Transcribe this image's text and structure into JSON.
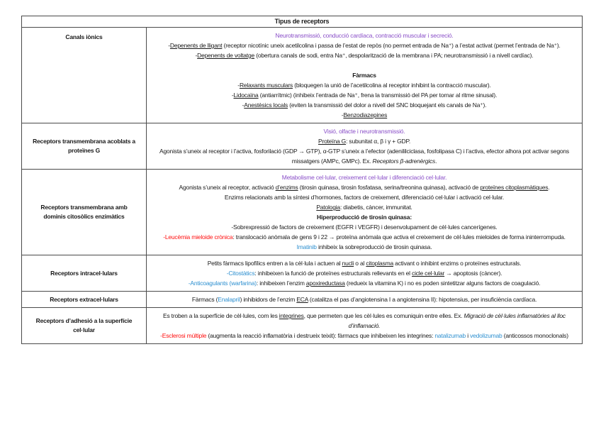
{
  "colors": {
    "purple": "#8A4FC8",
    "red": "#FF1010",
    "blue": "#2E90D0",
    "text": "#1a1a1a",
    "border": "#4a4a4a"
  },
  "table": {
    "title": "Tipus de receptors",
    "rows": [
      {
        "header": "Canals iònics",
        "lines": [
          {
            "segs": [
              {
                "t": "Neurotransmissió, conducció cardíaca, contracció muscular i secreció.",
                "style": "purple"
              }
            ]
          },
          {
            "segs": [
              {
                "t": "-"
              },
              {
                "t": "Depenents de lligant",
                "style": "u"
              },
              {
                "t": " (receptor nicotínic uneix acetilcolina i passa de l’estat de repòs (no permet entrada de Na⁺) a l’estat activat (permet l’entrada de Na⁺)."
              }
            ]
          },
          {
            "segs": [
              {
                "t": "-"
              },
              {
                "t": "Depenents de voltatge",
                "style": "u"
              },
              {
                "t": " (obertura canals de sodi, entra Na⁺, despolarització de la membrana i PA; neurotransmissió i a nivell cardíac)."
              }
            ]
          },
          {
            "segs": []
          },
          {
            "segs": [
              {
                "t": "Fàrmacs",
                "style": "b"
              }
            ]
          },
          {
            "segs": [
              {
                "t": "-"
              },
              {
                "t": "Relaxants musculars",
                "style": "u"
              },
              {
                "t": " (bloquegen la unió de l’acetilcolina al receptor inhibint la contracció muscular)."
              }
            ]
          },
          {
            "segs": [
              {
                "t": "-"
              },
              {
                "t": "Lidocaïna",
                "style": "u"
              },
              {
                "t": " (antiarrítmic) (inhibeix l’entrada de Na⁺, frena la transmissió del PA per tornar al ritme sinusal)."
              }
            ]
          },
          {
            "segs": [
              {
                "t": "-"
              },
              {
                "t": "Anestèsics locals",
                "style": "u"
              },
              {
                "t": " (eviten la transmissió del dolor a nivell del SNC bloquejant els canals de Na⁺)."
              }
            ]
          },
          {
            "segs": [
              {
                "t": "-"
              },
              {
                "t": "Benzodiazepines",
                "style": "u"
              }
            ]
          }
        ]
      },
      {
        "header": "Receptors transmembrana acoblats a proteïnes G",
        "lines": [
          {
            "segs": [
              {
                "t": "Visió, olfacte i neurotransmissió.",
                "style": "purple"
              }
            ]
          },
          {
            "segs": [
              {
                "t": "Proteïna G",
                "style": "u"
              },
              {
                "t": ": subunitat α, β i γ + GDP."
              }
            ]
          },
          {
            "segs": [
              {
                "t": "Agonista s’uneix al receptor i l’activa, fosforilació (GDP → GTP), α-GTP s’uneix a l’efector (adenililciclasa, fosfolipasa C) i l’activa, efector alhora pot activar segons missatgers (AMPc, GMPc). Ex. "
              },
              {
                "t": "Receptors β-adrenèrgics",
                "style": "i"
              },
              {
                "t": "."
              }
            ]
          }
        ]
      },
      {
        "header": "Receptors transmembrana amb dominis citosòlics enzimàtics",
        "lines": [
          {
            "segs": [
              {
                "t": "Metabolisme cel·lular, creixement cel·lular i diferenciació cel·lular.",
                "style": "purple"
              }
            ]
          },
          {
            "segs": [
              {
                "t": "Agonista s’uneix al receptor, activació "
              },
              {
                "t": "d’enzims",
                "style": "u"
              },
              {
                "t": " (tirosin quinasa, tirosin fosfatasa, serina/treonina quinasa), activació de "
              },
              {
                "t": "proteïnes citoplasmàtiques",
                "style": "u"
              },
              {
                "t": "."
              }
            ]
          },
          {
            "segs": [
              {
                "t": "Enzims relacionats amb la síntesi d’hormones, factors de creixement, diferenciació cel·lular i activació cel·lular."
              }
            ]
          },
          {
            "segs": [
              {
                "t": "Patologia",
                "style": "u"
              },
              {
                "t": ": diabetis, càncer, immunitat."
              }
            ]
          },
          {
            "segs": [
              {
                "t": "Hiperproducció de tirosin quinasa:",
                "style": "b"
              }
            ]
          },
          {
            "segs": [
              {
                "t": "-Sobrexpressió de factors de creixement (EGFR i VEGFR) i desenvolupament de cèl·lules cancerígenes."
              }
            ]
          },
          {
            "segs": [
              {
                "t": "-Leucèmia mieloide crònica",
                "style": "red"
              },
              {
                "t": ": translocació anòmala de gens 9 i 22 → proteïna anòmala que activa el creixement de cèl·lules mieloides de forma ininterrompuda."
              }
            ]
          },
          {
            "segs": [
              {
                "t": "Imatinib",
                "style": "blue"
              },
              {
                "t": " inhibeix la sobreproducció de tirosin quinasa."
              }
            ]
          }
        ]
      },
      {
        "header": "Receptors intracel·lulars",
        "lines": [
          {
            "segs": [
              {
                "t": "Petits fàrmacs lipofílics entren a la cèl·lula i actuen al "
              },
              {
                "t": "nucli",
                "style": "u"
              },
              {
                "t": " o al "
              },
              {
                "t": "citoplasma",
                "style": "u"
              },
              {
                "t": " activant o inhibint enzims o proteïnes estructurals."
              }
            ]
          },
          {
            "segs": [
              {
                "t": "-Citostàtics",
                "style": "blue"
              },
              {
                "t": ": inhibeixen la funció de proteïnes estructurals rellevants en el "
              },
              {
                "t": "cicle cel·lular",
                "style": "u"
              },
              {
                "t": " → apoptosis (càncer)."
              }
            ]
          },
          {
            "segs": [
              {
                "t": "-Anticoagulants (warfarina)",
                "style": "blue"
              },
              {
                "t": ": inhibeixen l’enzim "
              },
              {
                "t": "apoxireductasa",
                "style": "u"
              },
              {
                "t": " (redueix la vitamina K) i no es poden sintetitzar alguns factors de coagulació."
              }
            ]
          }
        ]
      },
      {
        "header": "Receptors extracel·lulars",
        "lines": [
          {
            "segs": [
              {
                "t": "Fàrmacs ("
              },
              {
                "t": "Enalapril",
                "style": "blue"
              },
              {
                "t": ") inhibidors de l’enzim "
              },
              {
                "t": "ECA",
                "style": "u"
              },
              {
                "t": " (catalitza el pas d’angiotensina I a angiotensina II): hipotensius, per insuficiència cardíaca."
              }
            ]
          }
        ]
      },
      {
        "header": "Receptors d’adhesió a la superfície cel·lular",
        "lines": [
          {
            "segs": [
              {
                "t": "Es troben a la superfície de cèl·lules, com les "
              },
              {
                "t": "integrines",
                "style": "u"
              },
              {
                "t": ", que permeten que les cèl·lules es comuniquin entre elles. Ex. "
              },
              {
                "t": "Migració de cèl·lules inflamatòries al lloc d’inflamació.",
                "style": "i"
              }
            ]
          },
          {
            "segs": [
              {
                "t": "-Esclerosi múltiple",
                "style": "red"
              },
              {
                "t": " (augmenta la reacció inflamatòria i destrueix teixit): fàrmacs que inhibeixen les integrines: "
              },
              {
                "t": "natalizumab",
                "style": "blue"
              },
              {
                "t": " i "
              },
              {
                "t": "vedolizumab",
                "style": "blue"
              },
              {
                "t": " (anticossos monoclonals)"
              }
            ]
          }
        ]
      }
    ]
  }
}
